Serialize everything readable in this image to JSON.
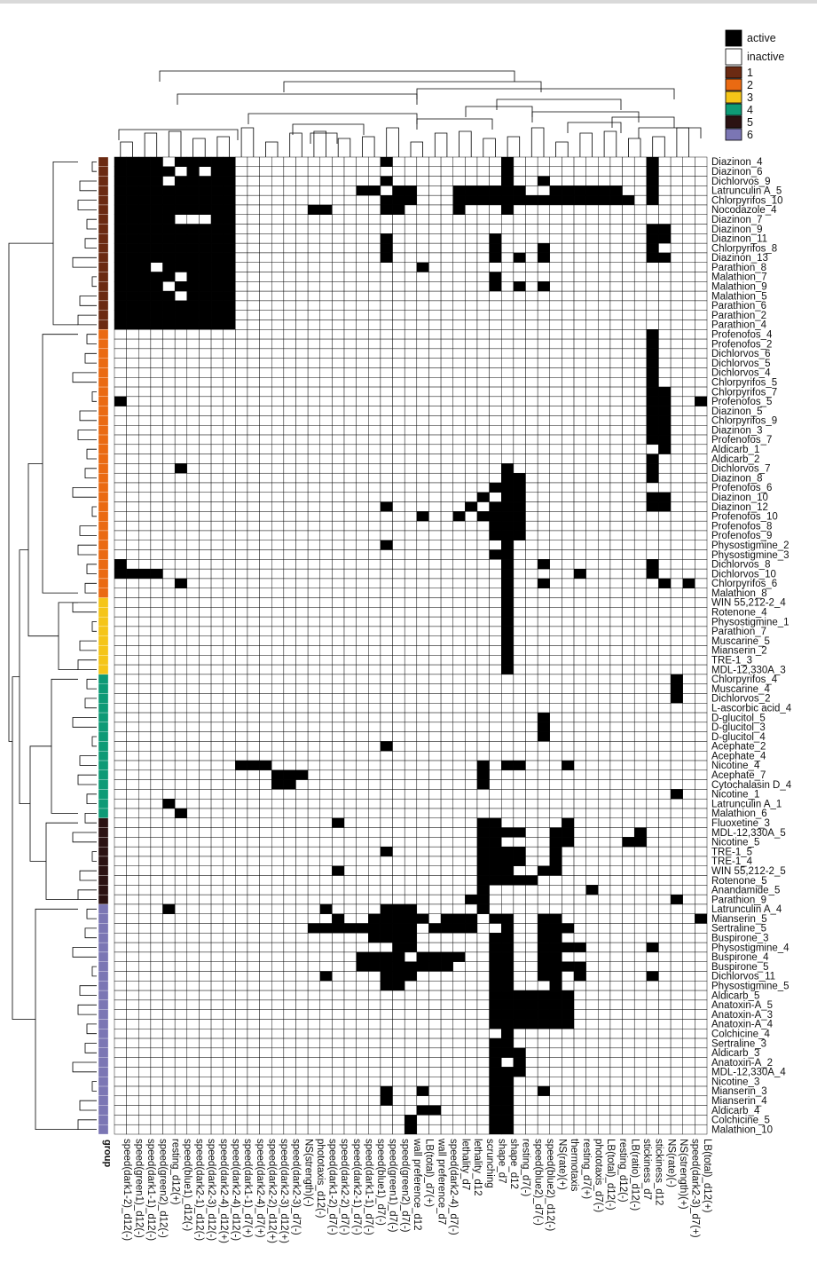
{
  "chart_data": {
    "type": "heatmap",
    "title": "",
    "legend": {
      "placement": "top-right",
      "status": [
        {
          "label": "active",
          "color": "#000000"
        },
        {
          "label": "inactive",
          "color": "#ffffff"
        }
      ],
      "groups": [
        {
          "label": "1",
          "color": "#6b2a12"
        },
        {
          "label": "2",
          "color": "#ea6a12"
        },
        {
          "label": "3",
          "color": "#f5c518"
        },
        {
          "label": "4",
          "color": "#0e9a76"
        },
        {
          "label": "5",
          "color": "#2b1212"
        },
        {
          "label": "6",
          "color": "#7b76b4"
        }
      ]
    },
    "group_axis_label": "group",
    "columns": [
      "speed(dark1-2)_d12(-)",
      "speed(green1)_d12(-)",
      "speed(dark1-1)_d12(-)",
      "speed(green2)_d12(-)",
      "resting_d12(+)",
      "speed(blue1)_d12(-)",
      "speed(dark2-1)_d12(-)",
      "speed(dark2-3)_d12(-)",
      "speed(dark2-4)_d12(+)",
      "speed(dark2-4)_d12(-)",
      "speed(dark1-1)_d7(+)",
      "speed(dark2-4)_d7(+)",
      "speed(dark2-2)_d12(+)",
      "speed(dark2-3)_d12(+)",
      "speed(dark2-3)_d7(-)",
      "NS(strength)(-)",
      "phototaxis_d12(-)",
      "speed(dark1-2)_d7(-)",
      "speed(dark2-2)_d7(-)",
      "speed(dark2-1)_d7(-)",
      "speed(dark1-1)_d7(-)",
      "speed(blue1)_d7(-)",
      "speed(green1)_d7(-)",
      "speed(green2)_d7(-)",
      "wall preference_d12",
      "LB(total)_d7(+)",
      "wall preference_d7",
      "speed(dark2-4)_d7(-)",
      "lethality_d7",
      "lethality_d12",
      "scrunching",
      "shape_d7",
      "shape_d12",
      "resting_d7(-)",
      "speed(blue2)_d7(-)",
      "speed(blue2)_d12(-)",
      "NS(rate)(+)",
      "thermotaxis",
      "resting_d7(+)",
      "phototaxis_d7(-)",
      "LB(total)_d12(-)",
      "resting_d12(-)",
      "LB(ratio)_d12(-)",
      "stickiness_d7",
      "stickiness_d12",
      "NS(rate)(-)",
      "NS(strength)(+)",
      "speed(dark2-3)_d7(+)",
      "LB(total)_d12(+)"
    ],
    "rows": [
      {
        "label": "Diazinon_4",
        "group": 1
      },
      {
        "label": "Diazinon_6",
        "group": 1
      },
      {
        "label": "Dichlorvos_9",
        "group": 1
      },
      {
        "label": "Latrunculin A_5",
        "group": 1
      },
      {
        "label": "Chlorpyrifos_10",
        "group": 1
      },
      {
        "label": "Nocodazole_4",
        "group": 1
      },
      {
        "label": "Diazinon_7",
        "group": 1
      },
      {
        "label": "Diazinon_9",
        "group": 1
      },
      {
        "label": "Diazinon_11",
        "group": 1
      },
      {
        "label": "Chlorpyrifos_8",
        "group": 1
      },
      {
        "label": "Diazinon_13",
        "group": 1
      },
      {
        "label": "Parathion_8",
        "group": 1
      },
      {
        "label": "Malathion_7",
        "group": 1
      },
      {
        "label": "Malathion_9",
        "group": 1
      },
      {
        "label": "Malathion_5",
        "group": 1
      },
      {
        "label": "Parathion_6",
        "group": 1
      },
      {
        "label": "Parathion_2",
        "group": 1
      },
      {
        "label": "Parathion_4",
        "group": 1
      },
      {
        "label": "Profenofos_4",
        "group": 2
      },
      {
        "label": "Profenofos_2",
        "group": 2
      },
      {
        "label": "Dichlorvos_6",
        "group": 2
      },
      {
        "label": "Dichlorvos_5",
        "group": 2
      },
      {
        "label": "Dichlorvos_4",
        "group": 2
      },
      {
        "label": "Chlorpyrifos_5",
        "group": 2
      },
      {
        "label": "Chlorpyrifos_7",
        "group": 2
      },
      {
        "label": "Profenofos_5",
        "group": 2
      },
      {
        "label": "Diazinon_5",
        "group": 2
      },
      {
        "label": "Chlorpyrifos_9",
        "group": 2
      },
      {
        "label": "Diazinon_3",
        "group": 2
      },
      {
        "label": "Profenofos_7",
        "group": 2
      },
      {
        "label": "Aldicarb_1",
        "group": 2
      },
      {
        "label": "Aldicarb_2",
        "group": 2
      },
      {
        "label": "Dichlorvos_7",
        "group": 2
      },
      {
        "label": "Diazinon_8",
        "group": 2
      },
      {
        "label": "Profenofos_6",
        "group": 2
      },
      {
        "label": "Diazinon_10",
        "group": 2
      },
      {
        "label": "Diazinon_12",
        "group": 2
      },
      {
        "label": "Profenofos_10",
        "group": 2
      },
      {
        "label": "Profenofos_8",
        "group": 2
      },
      {
        "label": "Profenofos_9",
        "group": 2
      },
      {
        "label": "Physostigmine_2",
        "group": 2
      },
      {
        "label": "Physostigmine_3",
        "group": 2
      },
      {
        "label": "Dichlorvos_8",
        "group": 2
      },
      {
        "label": "Dichlorvos_10",
        "group": 2
      },
      {
        "label": "Chlorpyrifos_6",
        "group": 2
      },
      {
        "label": "Malathion_8",
        "group": 2
      },
      {
        "label": "WIN 55,212-2_4",
        "group": 3
      },
      {
        "label": "Rotenone_4",
        "group": 3
      },
      {
        "label": "Physostigmine_1",
        "group": 3
      },
      {
        "label": "Parathion_7",
        "group": 3
      },
      {
        "label": "Muscarine_5",
        "group": 3
      },
      {
        "label": "Mianserin_2",
        "group": 3
      },
      {
        "label": "TRE-1_3",
        "group": 3
      },
      {
        "label": "MDL-12,330A_3",
        "group": 3
      },
      {
        "label": "Chlorpyrifos_4",
        "group": 4
      },
      {
        "label": "Muscarine_4",
        "group": 4
      },
      {
        "label": "Dichlorvos_2",
        "group": 4
      },
      {
        "label": "L-ascorbic acid_4",
        "group": 4
      },
      {
        "label": "D-glucitol_5",
        "group": 4
      },
      {
        "label": "D-glucitol_3",
        "group": 4
      },
      {
        "label": "D-glucitol_4",
        "group": 4
      },
      {
        "label": "Acephate_2",
        "group": 4
      },
      {
        "label": "Acephate_4",
        "group": 4
      },
      {
        "label": "Nicotine_4",
        "group": 4
      },
      {
        "label": "Acephate_7",
        "group": 4
      },
      {
        "label": "Cytochalasin D_4",
        "group": 4
      },
      {
        "label": "Nicotine_1",
        "group": 4
      },
      {
        "label": "Latrunculin A_1",
        "group": 4
      },
      {
        "label": "Malathion_6",
        "group": 4
      },
      {
        "label": "Fluoxetine_3",
        "group": 5
      },
      {
        "label": "MDL-12,330A_5",
        "group": 5
      },
      {
        "label": "Nicotine_5",
        "group": 5
      },
      {
        "label": "TRE-1_5",
        "group": 5
      },
      {
        "label": "TRE-1_4",
        "group": 5
      },
      {
        "label": "WIN 55,212-2_5",
        "group": 5
      },
      {
        "label": "Rotenone_5",
        "group": 5
      },
      {
        "label": "Anandamide_5",
        "group": 5
      },
      {
        "label": "Parathion_9",
        "group": 5
      },
      {
        "label": "Latrunculin A_4",
        "group": 6
      },
      {
        "label": "Mianserin_5",
        "group": 6
      },
      {
        "label": "Sertraline_5",
        "group": 6
      },
      {
        "label": "Buspirone_3",
        "group": 6
      },
      {
        "label": "Physostigmine_4",
        "group": 6
      },
      {
        "label": "Buspirone_4",
        "group": 6
      },
      {
        "label": "Buspirone_5",
        "group": 6
      },
      {
        "label": "Dichlorvos_11",
        "group": 6
      },
      {
        "label": "Physostigmine_5",
        "group": 6
      },
      {
        "label": "Aldicarb_5",
        "group": 6
      },
      {
        "label": "Anatoxin-A_5",
        "group": 6
      },
      {
        "label": "Anatoxin-A_3",
        "group": 6
      },
      {
        "label": "Anatoxin-A_4",
        "group": 6
      },
      {
        "label": "Colchicine_4",
        "group": 6
      },
      {
        "label": "Sertraline_3",
        "group": 6
      },
      {
        "label": "Aldicarb_3",
        "group": 6
      },
      {
        "label": "Anatoxin-A_2",
        "group": 6
      },
      {
        "label": "MDL-12,330A_4",
        "group": 6
      },
      {
        "label": "Nicotine_3",
        "group": 6
      },
      {
        "label": "Mianserin_3",
        "group": 6
      },
      {
        "label": "Mianserin_4",
        "group": 6
      },
      {
        "label": "Aldicarb_4",
        "group": 6
      },
      {
        "label": "Colchicine_5",
        "group": 6
      },
      {
        "label": "Malathion_10",
        "group": 6
      }
    ],
    "active_cells": {
      "Diazinon_4": [
        0,
        1,
        2,
        3,
        5,
        6,
        7,
        8,
        9,
        22,
        32,
        44
      ],
      "Diazinon_6": [
        0,
        1,
        2,
        3,
        4,
        6,
        8,
        9,
        32,
        44
      ],
      "Dichlorvos_9": [
        0,
        1,
        2,
        3,
        5,
        6,
        7,
        8,
        9,
        22,
        32,
        35,
        44
      ],
      "Latrunculin A_5": [
        0,
        1,
        2,
        3,
        4,
        5,
        6,
        7,
        8,
        9,
        20,
        21,
        23,
        24,
        28,
        29,
        30,
        31,
        32,
        33,
        36,
        37,
        38,
        39,
        40,
        41,
        44
      ],
      "Chlorpyrifos_10": [
        0,
        1,
        2,
        3,
        4,
        5,
        6,
        7,
        8,
        9,
        22,
        23,
        24,
        28,
        29,
        30,
        31,
        32,
        33,
        34,
        35,
        36,
        37,
        38,
        39,
        40,
        41,
        42,
        44
      ],
      "Nocodazole_4": [
        0,
        1,
        2,
        3,
        4,
        5,
        6,
        7,
        8,
        9,
        16,
        17,
        22,
        23,
        28,
        32
      ],
      "Diazinon_7": [
        0,
        1,
        2,
        3,
        4,
        8,
        9
      ],
      "Diazinon_9": [
        0,
        1,
        2,
        3,
        4,
        5,
        6,
        7,
        8,
        9,
        44,
        45
      ],
      "Diazinon_11": [
        0,
        1,
        2,
        3,
        4,
        5,
        6,
        7,
        8,
        9,
        22,
        31,
        44,
        45
      ],
      "Chlorpyrifos_8": [
        0,
        1,
        2,
        3,
        4,
        5,
        6,
        7,
        8,
        9,
        22,
        31,
        35,
        44
      ],
      "Diazinon_13": [
        0,
        1,
        2,
        3,
        4,
        5,
        6,
        7,
        8,
        9,
        22,
        31,
        33,
        35,
        44,
        45
      ],
      "Parathion_8": [
        0,
        1,
        2,
        4,
        5,
        6,
        7,
        8,
        9,
        25
      ],
      "Malathion_7": [
        0,
        1,
        2,
        3,
        4,
        6,
        7,
        8,
        9,
        31
      ],
      "Malathion_9": [
        0,
        1,
        2,
        3,
        5,
        6,
        7,
        8,
        9,
        31,
        33,
        35
      ],
      "Malathion_5": [
        0,
        1,
        2,
        3,
        4,
        6,
        7,
        8,
        9
      ],
      "Parathion_6": [
        0,
        1,
        2,
        3,
        4,
        5,
        6,
        7,
        8,
        9
      ],
      "Parathion_2": [
        0,
        1,
        2,
        3,
        4,
        5,
        6,
        7,
        8,
        9
      ],
      "Parathion_4": [
        0,
        1,
        2,
        3,
        4,
        5,
        6,
        7,
        8,
        9
      ],
      "Profenofos_4": [
        44
      ],
      "Profenofos_2": [
        44
      ],
      "Dichlorvos_6": [
        44
      ],
      "Dichlorvos_5": [
        44
      ],
      "Dichlorvos_4": [
        44
      ],
      "Chlorpyrifos_5": [
        44
      ],
      "Chlorpyrifos_7": [
        44,
        45
      ],
      "Profenofos_5": [
        0,
        44,
        45,
        48
      ],
      "Diazinon_5": [
        44,
        45
      ],
      "Chlorpyrifos_9": [
        44,
        45
      ],
      "Diazinon_3": [
        44,
        45
      ],
      "Profenofos_7": [
        44,
        45
      ],
      "Aldicarb_1": [
        45
      ],
      "Aldicarb_2": [
        44
      ],
      "Dichlorvos_7": [
        5,
        32,
        44
      ],
      "Diazinon_8": [
        32,
        33,
        44
      ],
      "Profenofos_6": [
        31,
        32,
        33
      ],
      "Diazinon_10": [
        30,
        32,
        33,
        44,
        45
      ],
      "Diazinon_12": [
        22,
        29,
        31,
        32,
        33,
        44,
        45
      ],
      "Profenofos_10": [
        25,
        28,
        30,
        31,
        32,
        33
      ],
      "Profenofos_8": [
        31,
        32,
        33
      ],
      "Profenofos_9": [
        31,
        32,
        33
      ],
      "Physostigmine_2": [
        22,
        32
      ],
      "Physostigmine_3": [
        31,
        32
      ],
      "Dichlorvos_8": [
        0,
        32,
        35,
        44
      ],
      "Dichlorvos_10": [
        0,
        1,
        2,
        3,
        32,
        38,
        44
      ],
      "Chlorpyrifos_6": [
        5,
        32,
        35,
        45,
        47
      ],
      "Malathion_8": [
        32
      ],
      "WIN 55,212-2_4": [
        32
      ],
      "Rotenone_4": [
        32
      ],
      "Physostigmine_1": [
        32
      ],
      "Parathion_7": [
        32
      ],
      "Muscarine_5": [
        32
      ],
      "Mianserin_2": [
        32
      ],
      "TRE-1_3": [
        32
      ],
      "MDL-12,330A_3": [
        32
      ],
      "Chlorpyrifos_4": [
        46
      ],
      "Muscarine_4": [
        46
      ],
      "Dichlorvos_2": [
        46
      ],
      "L-ascorbic acid_4": [],
      "D-glucitol_5": [
        35
      ],
      "D-glucitol_3": [
        35
      ],
      "D-glucitol_4": [
        35
      ],
      "Acephate_2": [
        22
      ],
      "Acephate_4": [],
      "Nicotine_4": [
        10,
        11,
        12,
        30,
        32,
        33,
        37
      ],
      "Acephate_7": [
        13,
        14,
        15,
        30
      ],
      "Cytochalasin D_4": [
        13,
        14,
        30
      ],
      "Nicotine_1": [
        46
      ],
      "Latrunculin A_1": [
        4
      ],
      "Malathion_6": [
        5
      ],
      "Fluoxetine_3": [
        18,
        30,
        31,
        37
      ],
      "MDL-12,330A_5": [
        30,
        31,
        32,
        33,
        36,
        37,
        43
      ],
      "Nicotine_5": [
        30,
        31,
        36,
        37,
        42,
        43
      ],
      "TRE-1_5": [
        22,
        30,
        31,
        32,
        33,
        36
      ],
      "TRE-1_4": [
        30,
        31,
        32,
        33,
        36
      ],
      "WIN 55,212-2_5": [
        18,
        30,
        31,
        32,
        35,
        36
      ],
      "Rotenone_5": [
        30,
        31,
        32,
        33,
        34
      ],
      "Anandamide_5": [
        30,
        39
      ],
      "Parathion_9": [
        29,
        30,
        46
      ],
      "Latrunculin A_4": [
        4,
        17,
        22,
        23,
        24,
        30
      ],
      "Mianserin_5": [
        18,
        21,
        22,
        23,
        24,
        25,
        27,
        28,
        29,
        31,
        32,
        35,
        36,
        48
      ],
      "Sertraline_5": [
        16,
        17,
        18,
        19,
        20,
        21,
        22,
        23,
        24,
        26,
        27,
        28,
        29,
        32,
        35,
        36,
        37
      ],
      "Buspirone_3": [
        21,
        22,
        23,
        24,
        31,
        32,
        35,
        36
      ],
      "Physostigmine_4": [
        23,
        24,
        31,
        32,
        35,
        36,
        37,
        38,
        44
      ],
      "Buspirone_4": [
        20,
        21,
        22,
        23,
        25,
        26,
        27,
        28,
        31,
        32,
        35,
        36
      ],
      "Buspirone_5": [
        20,
        21,
        22,
        23,
        24,
        25,
        26,
        27,
        31,
        32,
        35,
        36,
        37,
        38
      ],
      "Dichlorvos_11": [
        17,
        22,
        23,
        24,
        31,
        32,
        35,
        36,
        38,
        44
      ],
      "Physostigmine_5": [
        22,
        23,
        31,
        32,
        36
      ],
      "Aldicarb_5": [
        31,
        32,
        33,
        34,
        35,
        36,
        37
      ],
      "Anatoxin-A_5": [
        31,
        32,
        33,
        34,
        35,
        36,
        37
      ],
      "Anatoxin-A_3": [
        31,
        32,
        33,
        34,
        35,
        36,
        37
      ],
      "Anatoxin-A_4": [
        31,
        32,
        33,
        34,
        35,
        36,
        37
      ],
      "Colchicine_4": [
        32
      ],
      "Sertraline_3": [
        31,
        32
      ],
      "Aldicarb_3": [
        31,
        32,
        33
      ],
      "Anatoxin-A_2": [
        31,
        33
      ],
      "MDL-12,330A_4": [
        31,
        32,
        33
      ],
      "Nicotine_3": [
        31,
        32
      ],
      "Mianserin_3": [
        22,
        25,
        31,
        32,
        35
      ],
      "Mianserin_4": [
        22,
        31,
        32
      ],
      "Aldicarb_4": [
        25,
        26,
        31,
        32
      ],
      "Colchicine_5": [
        24,
        31,
        32
      ],
      "Malathion_10": [
        24,
        31,
        32
      ]
    }
  }
}
